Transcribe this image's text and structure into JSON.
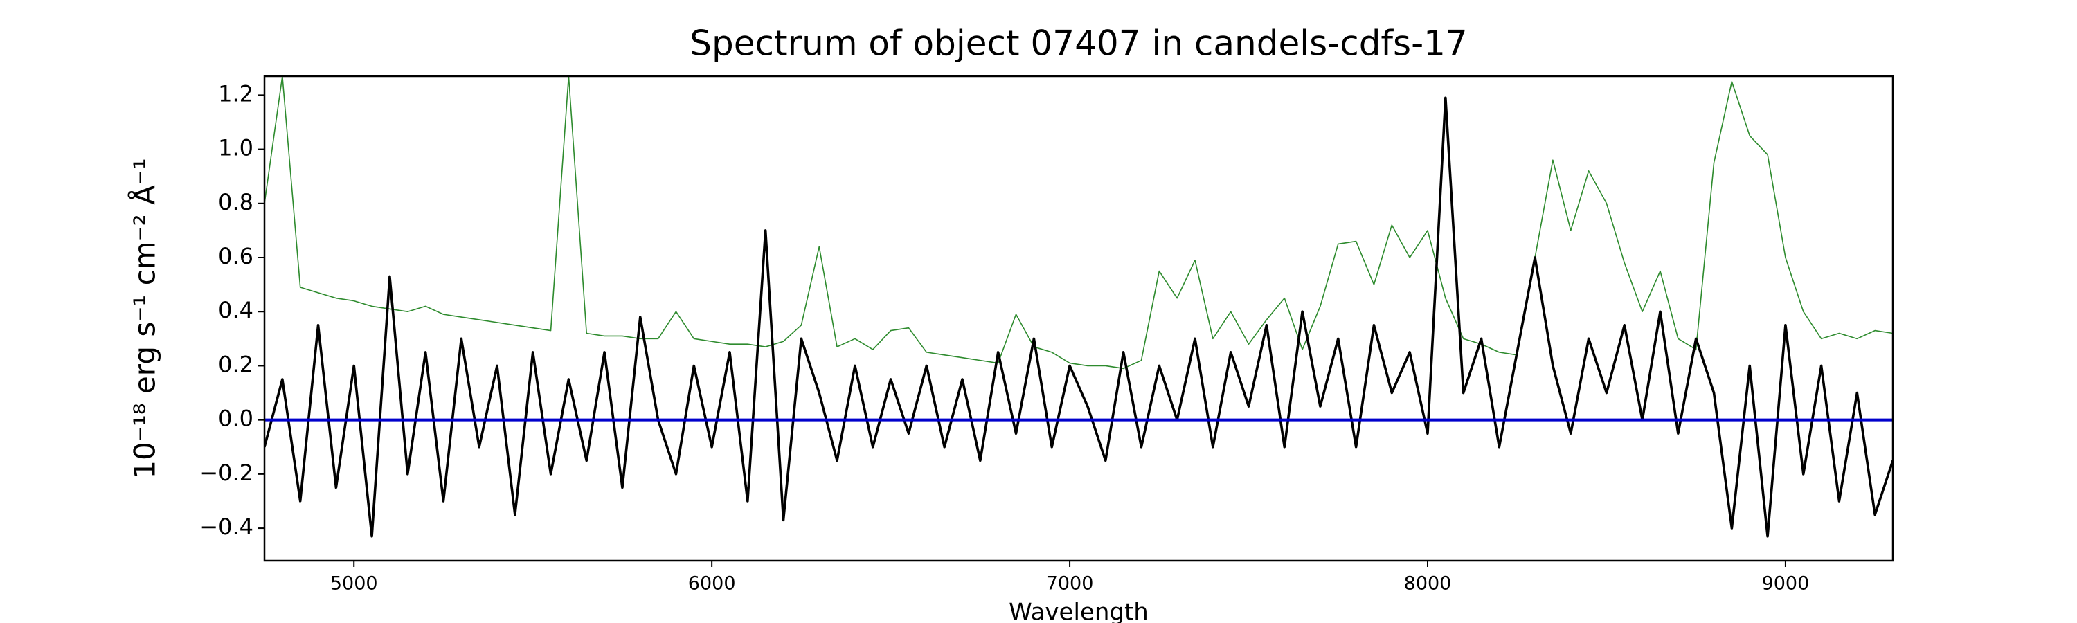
{
  "chart_data": {
    "type": "line",
    "title": "Spectrum of object 07407 in candels-cdfs-17",
    "x_label": "Wavelength",
    "y_label": "10⁻¹⁸ erg s⁻¹ cm⁻² Å⁻¹",
    "xlim": [
      4750,
      9300
    ],
    "ylim": [
      -0.52,
      1.27
    ],
    "xticks": [
      5000,
      6000,
      7000,
      8000,
      9000
    ],
    "yticks": [
      {
        "value": -0.4,
        "label": "−0.4"
      },
      {
        "value": -0.2,
        "label": "−0.2"
      },
      {
        "value": 0,
        "label": "0.0"
      },
      0.2,
      0.4,
      0.6,
      0.8,
      {
        "value": 1,
        "label": "1.0"
      },
      {
        "value": 1.2,
        "label": "1.2"
      }
    ],
    "grid": false,
    "series": [
      {
        "color": "#2e8b2e",
        "width": 1.6,
        "x": [
          4750,
          4800,
          4850,
          4900,
          4950,
          5000,
          5050,
          5100,
          5150,
          5200,
          5250,
          5300,
          5350,
          5400,
          5450,
          5500,
          5550,
          5600,
          5650,
          5700,
          5750,
          5800,
          5850,
          5900,
          5950,
          6000,
          6050,
          6100,
          6150,
          6200,
          6250,
          6300,
          6350,
          6400,
          6450,
          6500,
          6550,
          6600,
          6650,
          6700,
          6750,
          6800,
          6850,
          6900,
          6950,
          7000,
          7050,
          7100,
          7150,
          7200,
          7250,
          7300,
          7350,
          7400,
          7450,
          7500,
          7550,
          7600,
          7650,
          7700,
          7750,
          7800,
          7850,
          7900,
          7950,
          8000,
          8050,
          8100,
          8150,
          8200,
          8250,
          8300,
          8350,
          8400,
          8450,
          8500,
          8550,
          8600,
          8650,
          8700,
          8750,
          8800,
          8850,
          8900,
          8950,
          9000,
          9050,
          9100,
          9150,
          9200,
          9250,
          9300
        ],
        "values": [
          0.8,
          1.27,
          0.49,
          0.47,
          0.45,
          0.44,
          0.42,
          0.41,
          0.4,
          0.42,
          0.39,
          0.38,
          0.37,
          0.36,
          0.35,
          0.34,
          0.33,
          1.27,
          0.32,
          0.31,
          0.31,
          0.3,
          0.3,
          0.4,
          0.3,
          0.29,
          0.28,
          0.28,
          0.27,
          0.29,
          0.35,
          0.64,
          0.27,
          0.3,
          0.26,
          0.33,
          0.34,
          0.25,
          0.24,
          0.23,
          0.22,
          0.21,
          0.39,
          0.27,
          0.25,
          0.21,
          0.2,
          0.2,
          0.19,
          0.22,
          0.55,
          0.45,
          0.59,
          0.3,
          0.4,
          0.28,
          0.37,
          0.45,
          0.26,
          0.42,
          0.65,
          0.66,
          0.5,
          0.72,
          0.6,
          0.7,
          0.45,
          0.3,
          0.28,
          0.25,
          0.24,
          0.6,
          0.96,
          0.7,
          0.92,
          0.8,
          0.58,
          0.4,
          0.55,
          0.3,
          0.26,
          0.95,
          1.25,
          1.05,
          0.98,
          0.6,
          0.4,
          0.3,
          0.32,
          0.3,
          0.33,
          0.32
        ]
      },
      {
        "color": "#000000",
        "width": 3.6,
        "x": [
          4750,
          4800,
          4850,
          4900,
          4950,
          5000,
          5050,
          5100,
          5150,
          5200,
          5250,
          5300,
          5350,
          5400,
          5450,
          5500,
          5550,
          5600,
          5650,
          5700,
          5750,
          5800,
          5850,
          5900,
          5950,
          6000,
          6050,
          6100,
          6150,
          6200,
          6250,
          6300,
          6350,
          6400,
          6450,
          6500,
          6550,
          6600,
          6650,
          6700,
          6750,
          6800,
          6850,
          6900,
          6950,
          7000,
          7050,
          7100,
          7150,
          7200,
          7250,
          7300,
          7350,
          7400,
          7450,
          7500,
          7550,
          7600,
          7650,
          7700,
          7750,
          7800,
          7850,
          7900,
          7950,
          8000,
          8050,
          8100,
          8150,
          8200,
          8250,
          8300,
          8350,
          8400,
          8450,
          8500,
          8550,
          8600,
          8650,
          8700,
          8750,
          8800,
          8850,
          8900,
          8950,
          9000,
          9050,
          9100,
          9150,
          9200,
          9250,
          9300
        ],
        "values": [
          -0.1,
          0.15,
          -0.3,
          0.35,
          -0.25,
          0.2,
          -0.43,
          0.53,
          -0.2,
          0.25,
          -0.3,
          0.3,
          -0.1,
          0.2,
          -0.35,
          0.25,
          -0.2,
          0.15,
          -0.15,
          0.25,
          -0.25,
          0.38,
          0,
          -0.2,
          0.2,
          -0.1,
          0.25,
          -0.3,
          0.7,
          -0.37,
          0.3,
          0.1,
          -0.15,
          0.2,
          -0.1,
          0.15,
          -0.05,
          0.2,
          -0.1,
          0.15,
          -0.15,
          0.25,
          -0.05,
          0.3,
          -0.1,
          0.2,
          0.05,
          -0.15,
          0.25,
          -0.1,
          0.2,
          0,
          0.3,
          -0.1,
          0.25,
          0.05,
          0.35,
          -0.1,
          0.4,
          0.05,
          0.3,
          -0.1,
          0.35,
          0.1,
          0.25,
          -0.05,
          1.19,
          0.1,
          0.3,
          -0.1,
          0.25,
          0.6,
          0.2,
          -0.05,
          0.3,
          0.1,
          0.35,
          0,
          0.4,
          -0.05,
          0.3,
          0.1,
          -0.4,
          0.2,
          -0.43,
          0.35,
          -0.2,
          0.2,
          -0.3,
          0.1,
          -0.35,
          -0.15
        ]
      },
      {
        "color": "#0000cc",
        "width": 4,
        "x": [
          4750,
          9300
        ],
        "values": [
          0,
          0
        ]
      }
    ]
  }
}
